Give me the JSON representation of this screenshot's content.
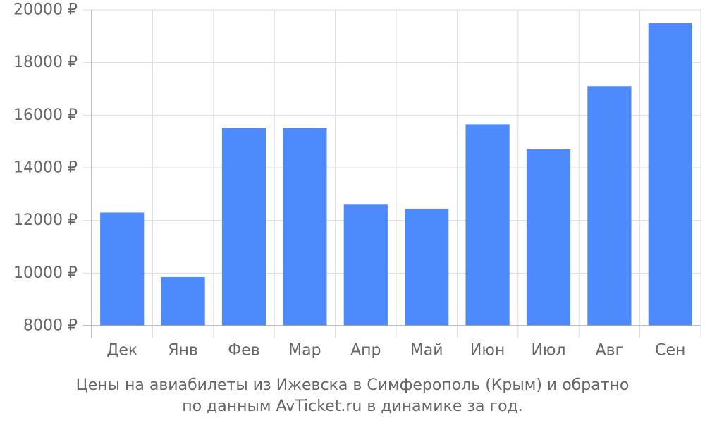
{
  "chart_data": {
    "type": "bar",
    "categories": [
      "Дек",
      "Янв",
      "Фев",
      "Мар",
      "Апр",
      "Май",
      "Июн",
      "Июл",
      "Авг",
      "Сен"
    ],
    "values": [
      12300,
      9850,
      15500,
      15500,
      12600,
      12450,
      15650,
      14700,
      17100,
      19500
    ],
    "ylim": [
      8000,
      20000
    ],
    "yticks": [
      8000,
      10000,
      12000,
      14000,
      16000,
      18000,
      20000
    ],
    "ytick_suffix": " ₽",
    "bar_color": "#4d8afc",
    "grid": true,
    "legend": "none"
  },
  "caption": {
    "line1": "Цены на авиабилеты из Ижевска в Симферополь (Крым) и обратно",
    "line2": "по данным AvTicket.ru в динамике за год."
  }
}
